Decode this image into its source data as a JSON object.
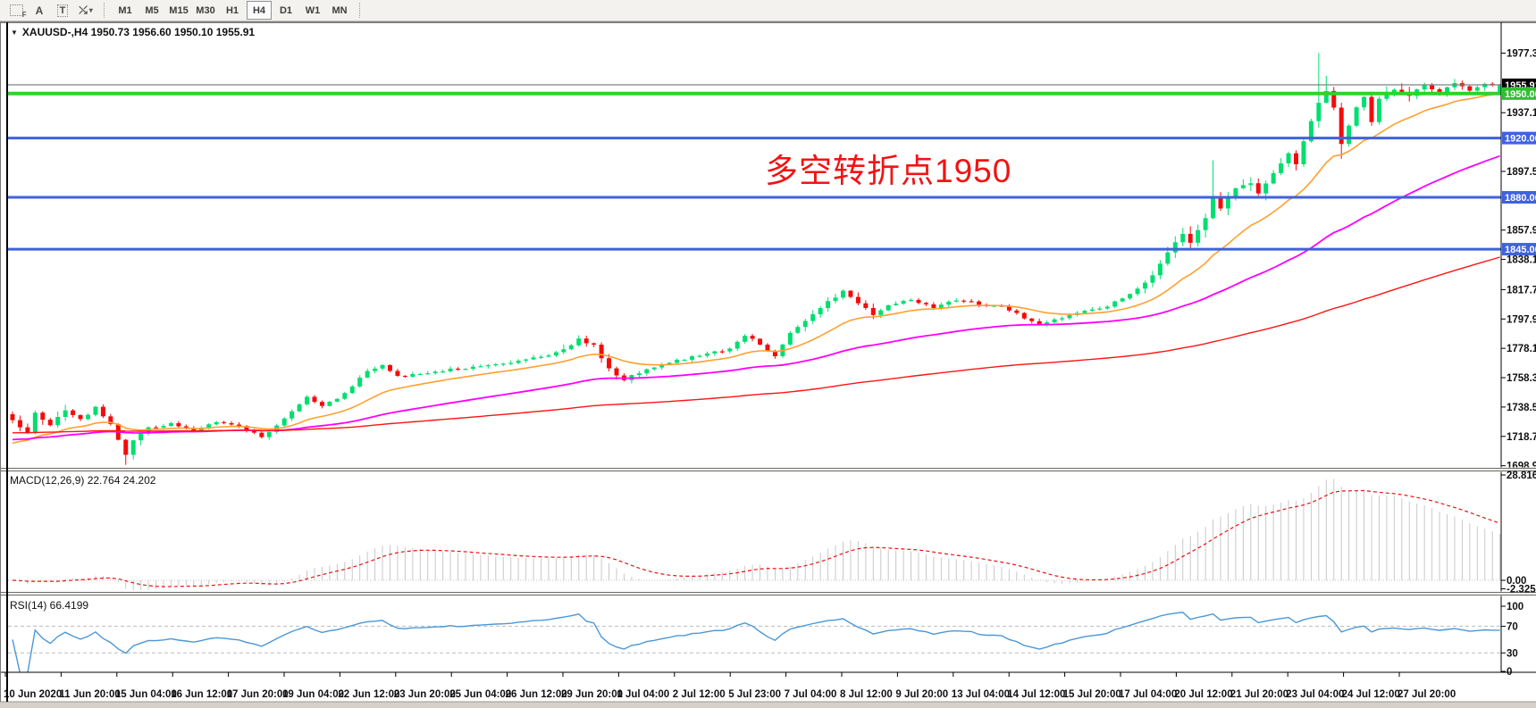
{
  "toolbar": {
    "tools": {
      "a_label": "A",
      "t_label": "T",
      "pattern_label": "F",
      "caret": "▾",
      "arrows_glyph": "⤯"
    },
    "timeframes": [
      {
        "label": "M1",
        "active": false
      },
      {
        "label": "M5",
        "active": false
      },
      {
        "label": "M15",
        "active": false
      },
      {
        "label": "M30",
        "active": false
      },
      {
        "label": "H1",
        "active": false
      },
      {
        "label": "H4",
        "active": true
      },
      {
        "label": "D1",
        "active": false
      },
      {
        "label": "W1",
        "active": false
      },
      {
        "label": "MN",
        "active": false
      }
    ]
  },
  "header": {
    "dropdown_glyph": "▼",
    "ohlc_title": "XAUUSD-,H4  1950.73 1956.60 1950.10 1955.91"
  },
  "annotation": {
    "text": "多空转折点1950",
    "color": "#f01414"
  },
  "indicators": {
    "macd_label": "MACD(12,26,9) 22.764 24.202",
    "rsi_label": "RSI(14) 66.4199"
  },
  "chart_data": {
    "type": "candlestick",
    "symbol": "XAUUSD-",
    "period": "H4",
    "bars": 198,
    "seed": 12,
    "last_candle": [
      1950.73,
      1956.6,
      1950.1,
      1955.91
    ],
    "close_anchors": [
      [
        0,
        1730
      ],
      [
        2,
        1721
      ],
      [
        3,
        1734
      ],
      [
        5,
        1727
      ],
      [
        7,
        1736
      ],
      [
        9,
        1730
      ],
      [
        11,
        1738
      ],
      [
        13,
        1727
      ],
      [
        14,
        1716
      ],
      [
        15,
        1706
      ],
      [
        16,
        1716
      ],
      [
        18,
        1724
      ],
      [
        21,
        1727
      ],
      [
        24,
        1723
      ],
      [
        27,
        1729
      ],
      [
        30,
        1726
      ],
      [
        32,
        1721
      ],
      [
        33,
        1718
      ],
      [
        35,
        1726
      ],
      [
        37,
        1736
      ],
      [
        39,
        1745
      ],
      [
        41,
        1740
      ],
      [
        43,
        1744
      ],
      [
        45,
        1753
      ],
      [
        47,
        1763
      ],
      [
        49,
        1767
      ],
      [
        51,
        1759
      ],
      [
        54,
        1761
      ],
      [
        58,
        1764
      ],
      [
        62,
        1766
      ],
      [
        66,
        1769
      ],
      [
        70,
        1772
      ],
      [
        73,
        1777
      ],
      [
        75,
        1784
      ],
      [
        77,
        1780
      ],
      [
        79,
        1764
      ],
      [
        81,
        1757
      ],
      [
        84,
        1764
      ],
      [
        88,
        1770
      ],
      [
        92,
        1774
      ],
      [
        95,
        1778
      ],
      [
        97,
        1787
      ],
      [
        99,
        1781
      ],
      [
        101,
        1773
      ],
      [
        103,
        1788
      ],
      [
        105,
        1797
      ],
      [
        107,
        1806
      ],
      [
        109,
        1813
      ],
      [
        110,
        1817
      ],
      [
        112,
        1809
      ],
      [
        114,
        1801
      ],
      [
        116,
        1807
      ],
      [
        119,
        1811
      ],
      [
        122,
        1806
      ],
      [
        125,
        1811
      ],
      [
        128,
        1808
      ],
      [
        131,
        1806
      ],
      [
        134,
        1799
      ],
      [
        136,
        1795
      ],
      [
        139,
        1799
      ],
      [
        142,
        1803
      ],
      [
        145,
        1807
      ],
      [
        147,
        1812
      ],
      [
        149,
        1818
      ],
      [
        151,
        1828
      ],
      [
        153,
        1843
      ],
      [
        155,
        1856
      ],
      [
        156,
        1850
      ],
      [
        158,
        1866
      ],
      [
        159,
        1880
      ],
      [
        160,
        1872
      ],
      [
        162,
        1886
      ],
      [
        164,
        1890
      ],
      [
        165,
        1882
      ],
      [
        167,
        1896
      ],
      [
        169,
        1910
      ],
      [
        170,
        1903
      ],
      [
        171,
        1918
      ],
      [
        172,
        1932
      ],
      [
        173,
        1944
      ],
      [
        174,
        1952
      ],
      [
        175,
        1940
      ],
      [
        176,
        1916
      ],
      [
        177,
        1928
      ],
      [
        178,
        1940
      ],
      [
        179,
        1948
      ],
      [
        180,
        1931
      ],
      [
        181,
        1946
      ],
      [
        183,
        1953
      ],
      [
        185,
        1949
      ],
      [
        187,
        1956
      ],
      [
        189,
        1951
      ],
      [
        191,
        1957
      ],
      [
        193,
        1952
      ],
      [
        195,
        1956
      ],
      [
        197,
        1955.91
      ]
    ],
    "spikes": [
      {
        "i": 173,
        "high": 1977.3
      },
      {
        "i": 174,
        "high": 1962
      },
      {
        "i": 176,
        "low": 1906
      },
      {
        "i": 15,
        "low": 1699.5
      },
      {
        "i": 159,
        "high": 1905
      }
    ],
    "vol_zones": [
      [
        0,
        7,
        6
      ],
      [
        13,
        17,
        6
      ],
      [
        73,
        82,
        5
      ],
      [
        105,
        115,
        5
      ],
      [
        150,
        186,
        8
      ],
      [
        187,
        197,
        5
      ]
    ],
    "colors": {
      "up": "#00de70",
      "down": "#f40b0b",
      "macd_hist": "#c8c8c8",
      "macd_signal": "#ee1111",
      "rsi_line": "#4a97d6",
      "level_dashed": "#bcbcbc",
      "axis_text": "#111111"
    },
    "moving_averages": [
      {
        "period": 16,
        "seed": 1712,
        "color": "#ffa02f"
      },
      {
        "period": 55,
        "seed": 1716,
        "color": "#ff00ff"
      },
      {
        "period": 160,
        "seed": 1721,
        "color": "#ff1414"
      }
    ],
    "macd": {
      "fast": 12,
      "slow": 26,
      "signal": 9
    },
    "rsi": {
      "period": 14,
      "levels": [
        70,
        30
      ]
    },
    "levels": [
      {
        "price": 1955.91,
        "color": "#808080",
        "width": 1.2,
        "label": "1955.91",
        "box": "#000000"
      },
      {
        "price": 1950.0,
        "color": "#2fd12f",
        "width": 4,
        "label": "1950.00",
        "box": "#2fbf2f"
      },
      {
        "price": 1920.0,
        "color": "#3f62dd",
        "width": 3,
        "label": "1920.00",
        "box": "#3f62dd"
      },
      {
        "price": 1880.0,
        "color": "#3f62dd",
        "width": 3,
        "label": "1880.00",
        "box": "#3f62dd"
      },
      {
        "price": 1845.0,
        "color": "#3f62dd",
        "width": 3,
        "label": "1845.00",
        "box": "#3f62dd"
      }
    ],
    "price_axis_ticks": [
      {
        "p": 1977.3,
        "t": "1977.30"
      },
      {
        "p": 1937.1,
        "t": "1937.10"
      },
      {
        "p": 1897.5,
        "t": "1897.50"
      },
      {
        "p": 1857.9,
        "t": "1857.90"
      },
      {
        "p": 1838.1,
        "t": "1838.10"
      },
      {
        "p": 1817.7,
        "t": "1817.70"
      },
      {
        "p": 1797.9,
        "t": "1797.90"
      },
      {
        "p": 1778.1,
        "t": "1778.10"
      },
      {
        "p": 1758.3,
        "t": "1758.30"
      },
      {
        "p": 1738.5,
        "t": "1738.50"
      },
      {
        "p": 1718.7,
        "t": "1718.70"
      },
      {
        "p": 1698.9,
        "t": "1698.90"
      }
    ],
    "macd_axis_labels": [
      {
        "v": 28.816,
        "t": "28.816"
      },
      {
        "v": 0.0,
        "t": "0.00"
      },
      {
        "v": -2.325,
        "t": "-2.325"
      }
    ],
    "rsi_axis_labels": [
      {
        "v": 100,
        "t": "100"
      },
      {
        "v": 70,
        "t": "70"
      },
      {
        "v": 30,
        "t": "30"
      },
      {
        "v": 0,
        "t": "0"
      }
    ],
    "time_labels": [
      "10 Jun 2020",
      "11 Jun 20:00",
      "15 Jun 04:00",
      "16 Jun 12:00",
      "17 Jun 20:00",
      "19 Jun 04:00",
      "22 Jun 12:00",
      "23 Jun 20:00",
      "25 Jun 04:00",
      "26 Jun 12:00",
      "29 Jun 20:00",
      "1 Jul 04:00",
      "2 Jul 12:00",
      "5 Jul 23:00",
      "7 Jul 04:00",
      "8 Jul 12:00",
      "9 Jul 20:00",
      "13 Jul 04:00",
      "14 Jul 12:00",
      "15 Jul 20:00",
      "17 Jul 04:00",
      "20 Jul 12:00",
      "21 Jul 20:00",
      "23 Jul 04:00",
      "24 Jul 12:00",
      "27 Jul 20:00"
    ]
  }
}
